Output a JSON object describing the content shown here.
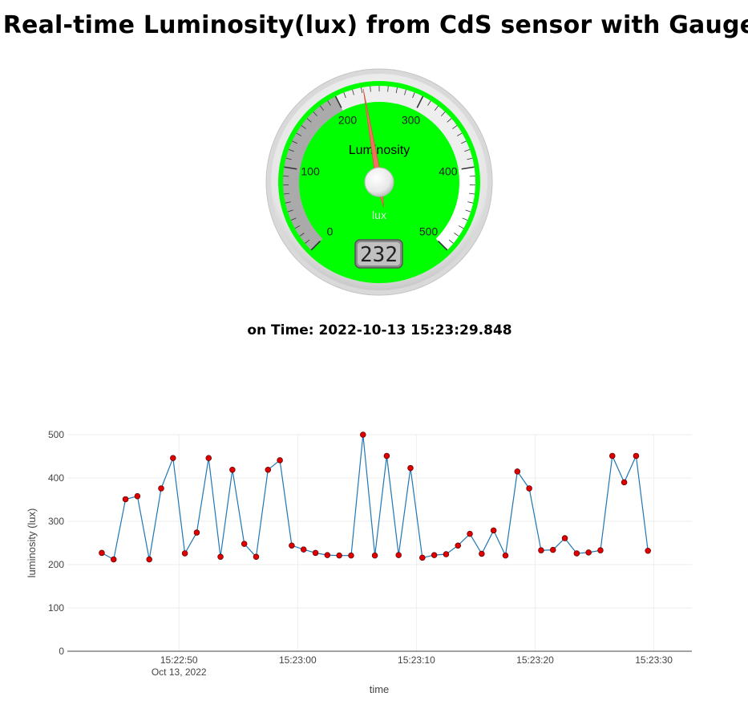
{
  "page": {
    "title": "Real-time Luminosity(lux) from CdS sensor with Gauge",
    "time_prefix": "on Time:",
    "time_value": "2022-10-13 15:23:29.848"
  },
  "gauge": {
    "title": "Luminosity",
    "units": "lux",
    "min": 0,
    "max": 500,
    "value": 232,
    "value_text": "232",
    "major_ticks": [
      "0",
      "100",
      "200",
      "300",
      "400",
      "500"
    ],
    "highlights": [
      {
        "from": 0,
        "to": 200,
        "color": "#aaaaaa"
      },
      {
        "from": 200,
        "to": 400,
        "color": "#eeeeee"
      },
      {
        "from": 400,
        "to": 500,
        "color": "#ffffff"
      }
    ],
    "colors": {
      "plate": "#00ff00",
      "needle": "#f07060",
      "display_bg": "#c0c0c0"
    }
  },
  "chart_data": {
    "type": "line",
    "title": "",
    "xlabel": "time",
    "ylabel": "luminosity (lux)",
    "x_ticks": [
      "15:22:50",
      "15:23:00",
      "15:23:10",
      "15:23:20",
      "15:23:30"
    ],
    "x_subtick": "Oct 13, 2022",
    "x_range": [
      "15:22:40.6",
      "15:23:33.2"
    ],
    "y_ticks": [
      "0",
      "100",
      "200",
      "300",
      "400",
      "500"
    ],
    "ylim": [
      0,
      500
    ],
    "grid": true,
    "colors": {
      "line": "#1f77b4",
      "marker": "#e00000"
    },
    "series": [
      {
        "x": [
          "15:22:43.5",
          "15:22:44.5",
          "15:22:45.5",
          "15:22:46.5",
          "15:22:47.5",
          "15:22:48.5",
          "15:22:49.5",
          "15:22:50.5",
          "15:22:51.5",
          "15:22:52.5",
          "15:22:53.5",
          "15:22:54.5",
          "15:22:55.5",
          "15:22:56.5",
          "15:22:57.5",
          "15:22:58.5",
          "15:22:59.5",
          "15:23:00.5",
          "15:23:01.5",
          "15:23:02.5",
          "15:23:03.5",
          "15:23:04.5",
          "15:23:05.5",
          "15:23:06.5",
          "15:23:07.5",
          "15:23:08.5",
          "15:23:09.5",
          "15:23:10.5",
          "15:23:11.5",
          "15:23:12.5",
          "15:23:13.5",
          "15:23:14.5",
          "15:23:15.5",
          "15:23:16.5",
          "15:23:17.5",
          "15:23:18.5",
          "15:23:19.5",
          "15:23:20.5",
          "15:23:21.5",
          "15:23:22.5",
          "15:23:23.5",
          "15:23:24.5",
          "15:23:25.5",
          "15:23:26.5",
          "15:23:27.5",
          "15:23:28.5",
          "15:23:29.5"
        ],
        "y": [
          227,
          212,
          351,
          358,
          212,
          376,
          446,
          226,
          274,
          446,
          218,
          419,
          248,
          218,
          419,
          441,
          244,
          235,
          227,
          222,
          221,
          221,
          500,
          221,
          451,
          222,
          423,
          216,
          222,
          224,
          244,
          271,
          225,
          279,
          221,
          415,
          376,
          233,
          234,
          261,
          226,
          228,
          233,
          451,
          390,
          451,
          232
        ]
      }
    ]
  }
}
